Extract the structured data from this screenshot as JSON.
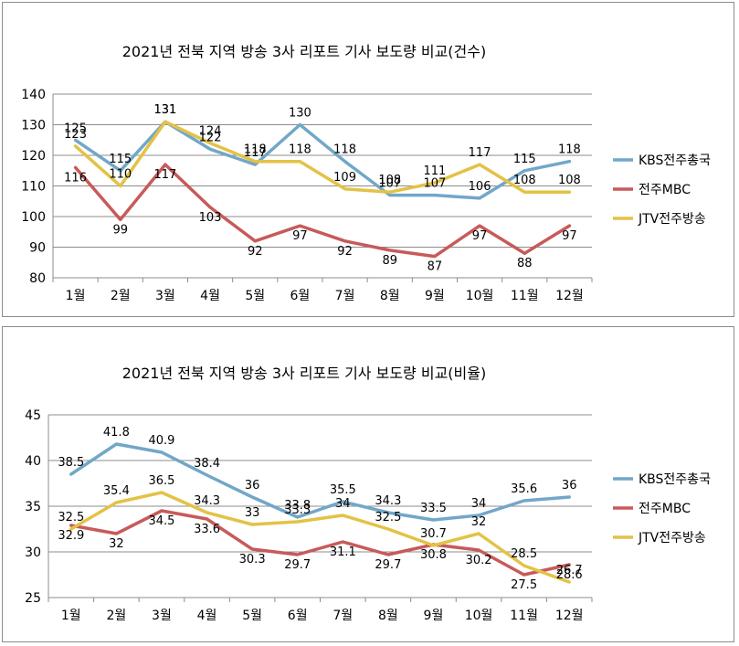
{
  "chart_data": [
    {
      "type": "line",
      "title": "2021년 전북 지역 방송 3사 리포트 기사 보도량 비교(건수)",
      "categories": [
        "1월",
        "2월",
        "3월",
        "4월",
        "5월",
        "6월",
        "7월",
        "8월",
        "9월",
        "10월",
        "11월",
        "12월"
      ],
      "ylim": [
        80,
        140
      ],
      "yticks": [
        80,
        90,
        100,
        110,
        120,
        130,
        140
      ],
      "legend_position": "right",
      "series": [
        {
          "name": "KBS전주총국",
          "color": "#71A7C8",
          "values": [
            125,
            115,
            131,
            122,
            117,
            130,
            118,
            107,
            107,
            106,
            115,
            118
          ]
        },
        {
          "name": "전주MBC",
          "color": "#C85A5A",
          "values": [
            116,
            99,
            117,
            103,
            92,
            97,
            92,
            89,
            87,
            97,
            88,
            97
          ]
        },
        {
          "name": "JTV전주방송",
          "color": "#E3C245",
          "values": [
            123,
            110,
            131,
            124,
            118,
            118,
            109,
            108,
            111,
            117,
            108,
            108
          ]
        }
      ]
    },
    {
      "type": "line",
      "title": "2021년 전북 지역 방송 3사 리포트 기사 보도량 비교(비율)",
      "categories": [
        "1월",
        "2월",
        "3월",
        "4월",
        "5월",
        "6월",
        "7월",
        "8월",
        "9월",
        "10월",
        "11월",
        "12월"
      ],
      "ylim": [
        25,
        45
      ],
      "yticks": [
        25,
        30,
        35,
        40,
        45
      ],
      "legend_position": "right",
      "series": [
        {
          "name": "KBS전주총국",
          "color": "#71A7C8",
          "values": [
            38.5,
            41.8,
            40.9,
            38.4,
            36,
            33.8,
            35.5,
            34.3,
            33.5,
            34,
            35.6,
            36
          ]
        },
        {
          "name": "전주MBC",
          "color": "#C85A5A",
          "values": [
            32.9,
            32,
            34.5,
            33.6,
            30.3,
            29.7,
            31.1,
            29.7,
            30.8,
            30.2,
            27.5,
            28.6
          ]
        },
        {
          "name": "JTV전주방송",
          "color": "#E3C245",
          "values": [
            32.5,
            35.4,
            36.5,
            34.3,
            33,
            33.3,
            34,
            32.5,
            30.7,
            32,
            28.5,
            26.7
          ]
        }
      ]
    }
  ]
}
